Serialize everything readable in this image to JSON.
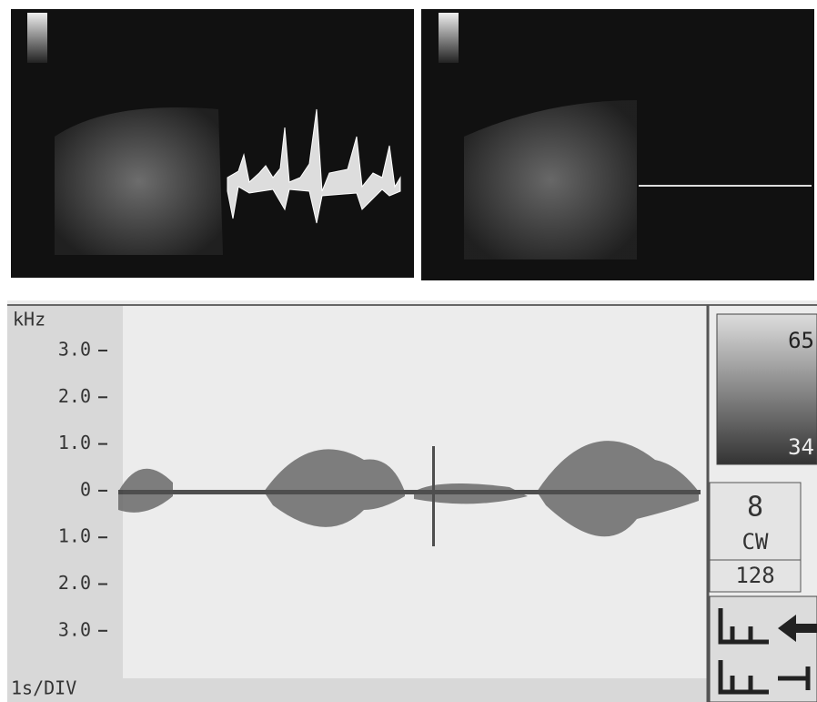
{
  "spectrum": {
    "unit": "kHz",
    "ticks": [
      "3.0",
      "2.0",
      "1.0",
      "0",
      "1.0",
      "2.0",
      "3.0"
    ],
    "time_scale": "1s/DIV"
  },
  "sidebar": {
    "scale_top": "65",
    "scale_bottom": "34",
    "gain": "8",
    "mode": "CW",
    "depth": "128"
  }
}
